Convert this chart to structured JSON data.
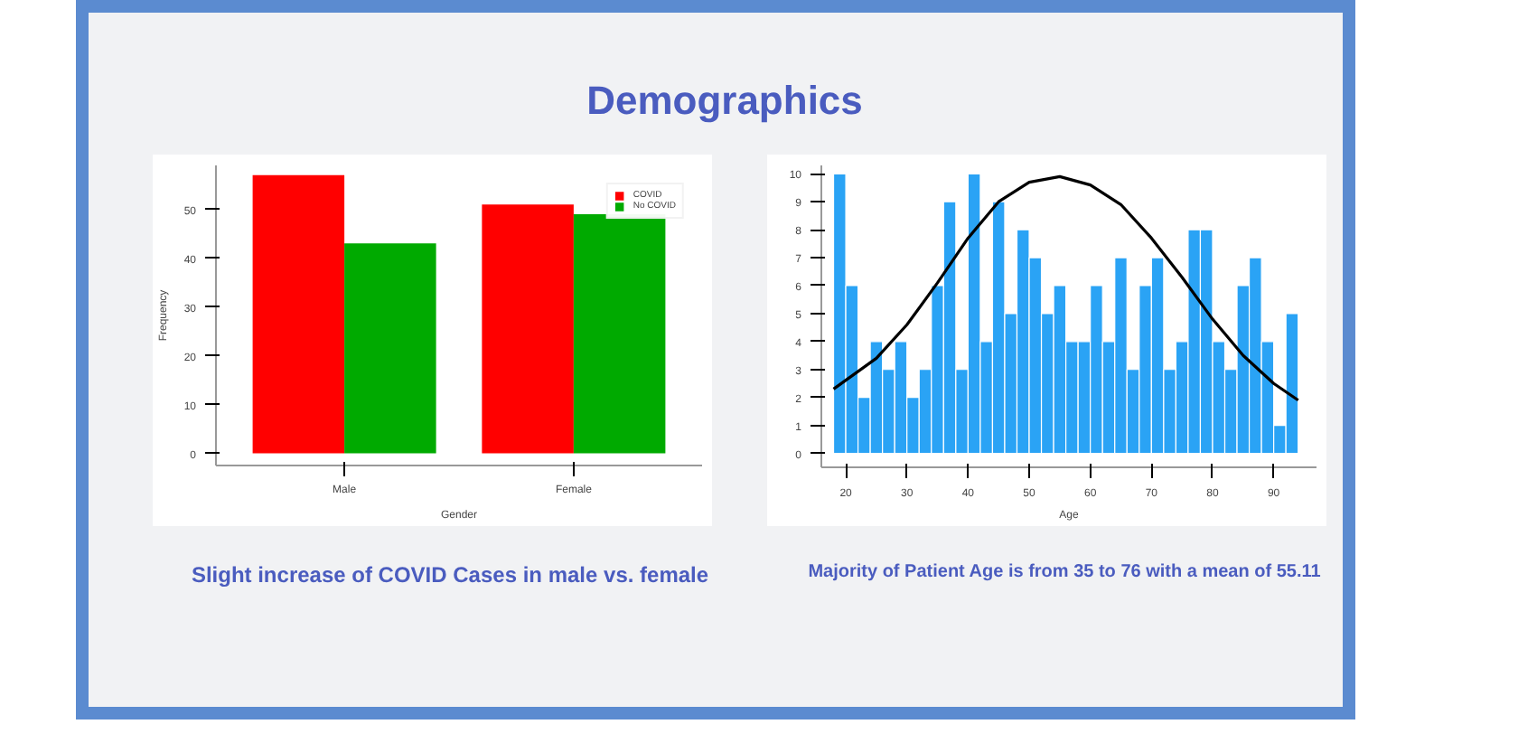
{
  "chart_data": [
    {
      "type": "other",
      "title": "Demographics"
    },
    {
      "type": "bar",
      "categories": [
        "Male",
        "Female"
      ],
      "xlabel": "Gender",
      "ylabel": "Frequency",
      "ylim": [
        -2.5,
        59
      ],
      "yticks": [
        0,
        10,
        20,
        30,
        40,
        50
      ],
      "legend": "top right",
      "series": [
        {
          "name": "COVID",
          "color": "#ff0000",
          "values": [
            57,
            51
          ]
        },
        {
          "name": "No COVID",
          "color": "#00aa00",
          "values": [
            43,
            49
          ]
        }
      ],
      "annotations": [
        "Slight increase of COVID Cases in male vs. female"
      ]
    },
    {
      "type": "histogram",
      "xlabel": "Age",
      "xlim": [
        16,
        97
      ],
      "ylim": [
        -0.5,
        10.3
      ],
      "xticks": [
        20,
        30,
        40,
        50,
        60,
        70,
        80,
        90
      ],
      "yticks": [
        0,
        1,
        2,
        3,
        4,
        5,
        6,
        7,
        8,
        9,
        10
      ],
      "color": "#2aa3f5",
      "bins": [
        18,
        20,
        22,
        24,
        26,
        28,
        30,
        32,
        34,
        36,
        38,
        40,
        42,
        44,
        46,
        48,
        50,
        52,
        54,
        56,
        58,
        60,
        62,
        64,
        66,
        68,
        70,
        72,
        74,
        76,
        78,
        80,
        82,
        84,
        86,
        88,
        90,
        92,
        94
      ],
      "values": [
        10,
        6,
        2,
        4,
        3,
        4,
        2,
        3,
        6,
        9,
        3,
        10,
        4,
        9,
        5,
        8,
        7,
        5,
        6,
        4,
        4,
        6,
        4,
        7,
        3,
        6,
        7,
        3,
        4,
        8,
        8,
        4,
        3,
        6,
        7,
        4,
        1,
        5
      ],
      "series": [
        {
          "type": "line",
          "color": "#000000",
          "x": [
            18,
            25,
            30,
            35,
            40,
            45,
            50,
            55,
            60,
            65,
            70,
            75,
            80,
            85,
            90,
            94
          ],
          "values": [
            2.3,
            3.4,
            4.6,
            6.1,
            7.7,
            9.0,
            9.7,
            9.9,
            9.6,
            8.9,
            7.7,
            6.3,
            4.8,
            3.5,
            2.5,
            1.9
          ]
        }
      ],
      "annotations": [
        "Majority of Patient Age is from 35 to 76 with a mean of 55.11"
      ]
    }
  ]
}
